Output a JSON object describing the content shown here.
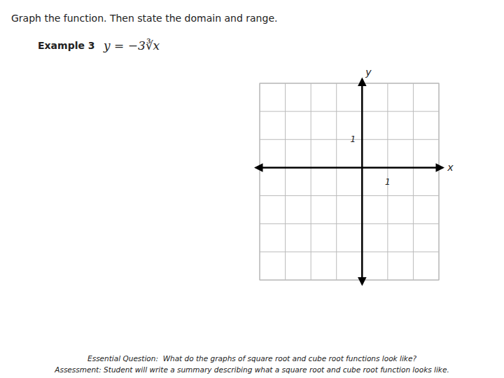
{
  "chart_data": {
    "type": "coordinate_grid",
    "title": "Graph the function. Then state the domain and range.",
    "annotations": [
      "Example 3",
      "y = −3∛x",
      "Essential Question:  What do the graphs of square root and cube root functions look like?",
      "Assessment: Student will write a summary describing what a square root and cube root function looks like."
    ],
    "x_label": "x",
    "y_label": "y",
    "xlim": [
      -4,
      3
    ],
    "ylim": [
      -4,
      3
    ],
    "xticks": [
      {
        "value": -4,
        "label": null
      },
      {
        "value": -3,
        "label": null
      },
      {
        "value": -2,
        "label": null
      },
      {
        "value": -1,
        "label": null
      },
      {
        "value": 0,
        "label": null
      },
      1,
      {
        "value": 2,
        "label": null
      },
      {
        "value": 3,
        "label": null
      }
    ],
    "yticks": [
      {
        "value": -4,
        "label": null
      },
      {
        "value": -3,
        "label": null
      },
      {
        "value": -2,
        "label": null
      },
      {
        "value": -1,
        "label": null
      },
      {
        "value": 0,
        "label": null
      },
      1,
      {
        "value": 2,
        "label": null
      },
      {
        "value": 3,
        "label": null
      }
    ],
    "grid": true,
    "grid_color": "#bbbbbb",
    "axis_color": "#000000"
  }
}
